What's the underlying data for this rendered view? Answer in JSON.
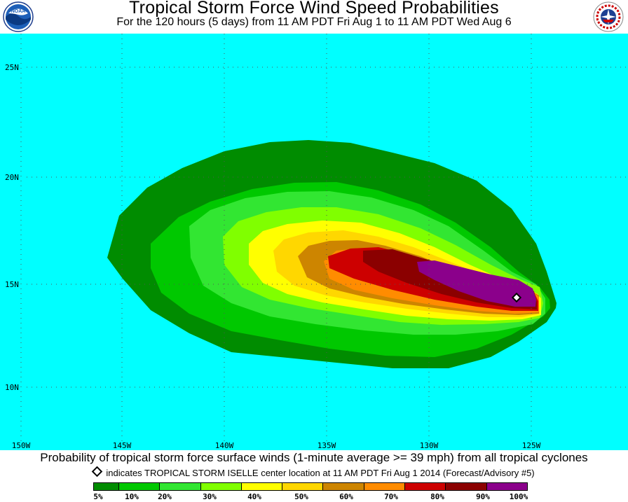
{
  "header": {
    "title": "Tropical Storm Force Wind Speed Probabilities",
    "subtitle": "For the 120 hours (5 days) from 11 AM PDT Fri Aug 1 to 11 AM PDT Wed Aug 6",
    "left_logo": "noaa-logo",
    "right_logo": "national-weather-service-logo",
    "left_logo_text": "NOAA"
  },
  "map": {
    "ocean_color": "#00ffff",
    "longitude_labels": [
      "150W",
      "145W",
      "140W",
      "135W",
      "130W",
      "125W"
    ],
    "latitude_labels": [
      "25N",
      "20N",
      "15N",
      "10N"
    ],
    "storm_marker_icon": "diamond-marker-icon"
  },
  "footer": {
    "caption": "Probability of tropical storm force surface winds (1-minute average >= 39 mph) from all tropical cyclones",
    "note": "indicates TROPICAL STORM ISELLE center location at 11 AM PDT Fri Aug 1 2014 (Forecast/Advisory #5)"
  },
  "legend": {
    "colors": [
      "#008c00",
      "#00c800",
      "#32e632",
      "#80ff00",
      "#ffff00",
      "#ffd700",
      "#cd8500",
      "#ff8c00",
      "#cd0000",
      "#8b0000",
      "#8b008b"
    ],
    "labels": [
      "5%",
      "10%",
      "20%",
      "30%",
      "40%",
      "50%",
      "60%",
      "70%",
      "80%",
      "90%",
      "100%"
    ]
  }
}
